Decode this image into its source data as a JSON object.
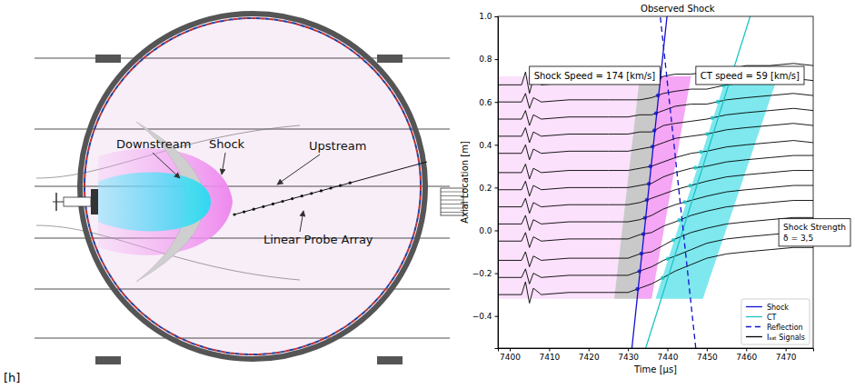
{
  "diagram": {
    "labels": {
      "downstream": "Downstream",
      "shock": "Shock",
      "upstream": "Upstream",
      "probe_array": "Linear Probe Array"
    },
    "caption": "[h]"
  },
  "chart_data": {
    "type": "line",
    "title": "Observed Shock",
    "x_label": "Time [μs]",
    "y_label": "Axial Location [m]",
    "xlim": [
      7397,
      7477
    ],
    "ylim": [
      -0.55,
      1.0
    ],
    "xticks": [
      7400,
      7410,
      7420,
      7430,
      7440,
      7450,
      7460,
      7470
    ],
    "yticks": [
      {
        "value": -0.4,
        "label": "−0.4"
      },
      {
        "value": -0.2,
        "label": "−0.2"
      },
      {
        "value": 0,
        "label": "0.0"
      },
      0.2,
      0.4,
      0.6,
      0.8,
      {
        "value": 1,
        "label": "1.0"
      }
    ],
    "grid": false,
    "legend": "lower right",
    "annotations": [
      {
        "lines": [
          "Shock Speed = 174 [km/s]"
        ]
      },
      {
        "lines": [
          "CT speed = 59 [km/s]"
        ]
      },
      {
        "lines": [
          "Shock Strength",
          "δ = 3,5"
        ]
      }
    ],
    "regions": [
      {
        "color": "#fbe1fb",
        "x": [
          7397,
          7426.5,
          7433,
          7397
        ],
        "y": [
          -0.32,
          -0.32,
          0.72,
          0.72
        ]
      },
      {
        "color": "#c9c9c9",
        "x": [
          7426.5,
          7432.3,
          7438.3,
          7433
        ],
        "y": [
          -0.32,
          -0.32,
          0.72,
          0.72
        ]
      },
      {
        "color": "#f5a6f5",
        "x": [
          7432.3,
          7436,
          7446,
          7438.3
        ],
        "y": [
          -0.32,
          -0.32,
          0.72,
          0.72
        ]
      },
      {
        "color": "#7ee8ee",
        "x": [
          7437,
          7449,
          7468,
          7455
        ],
        "y": [
          -0.32,
          -0.32,
          0.72,
          0.72
        ]
      }
    ],
    "series": [
      {
        "name": "Shock",
        "color": "#1010d0",
        "line_style": "solid",
        "x": [
          7431,
          7439.9
        ],
        "values": [
          -0.55,
          1.0
        ]
      },
      {
        "name": "CT",
        "color": "#1cc4c4",
        "line_style": "solid",
        "x": [
          7434.5,
          7461
        ],
        "values": [
          -0.55,
          1.0
        ]
      },
      {
        "name": "Reflection",
        "color": "#1010d0",
        "line_style": "dashed",
        "x": [
          7447.2,
          7438.2
        ],
        "values": [
          -0.55,
          1.0
        ]
      },
      {
        "name": "Iₛₐₜ Signals",
        "color": "#000000",
        "line_style": "solid",
        "x": [
          7397,
          7403,
          7404,
          7405,
          7406,
          7408,
          7415,
          7425,
          7430,
          7433,
          7436,
          7439,
          7442,
          7446,
          7450,
          7455,
          7460,
          7466,
          7472,
          7477
        ],
        "traces": [
          {
            "location": 0.68,
            "shock_arrival": 7438.1,
            "ct_arrival": 7455.5,
            "values": [
              0.68,
              0.68,
              0.74,
              0.64,
              0.71,
              0.68,
              0.69,
              0.69,
              0.69,
              0.69,
              0.7,
              0.72,
              0.73,
              0.73,
              0.74,
              0.75,
              0.77,
              0.77,
              0.78,
              0.77
            ]
          },
          {
            "location": 0.6,
            "shock_arrival": 7437.6,
            "ct_arrival": 7454.2,
            "values": [
              0.6,
              0.6,
              0.64,
              0.57,
              0.62,
              0.6,
              0.61,
              0.61,
              0.61,
              0.61,
              0.62,
              0.64,
              0.65,
              0.66,
              0.66,
              0.68,
              0.69,
              0.7,
              0.71,
              0.7
            ]
          },
          {
            "location": 0.52,
            "shock_arrival": 7437.1,
            "ct_arrival": 7452.8,
            "values": [
              0.52,
              0.52,
              0.56,
              0.49,
              0.54,
              0.52,
              0.53,
              0.53,
              0.53,
              0.54,
              0.54,
              0.56,
              0.58,
              0.59,
              0.59,
              0.61,
              0.62,
              0.63,
              0.64,
              0.63
            ]
          },
          {
            "location": 0.44,
            "shock_arrival": 7436.7,
            "ct_arrival": 7451.4,
            "values": [
              0.44,
              0.44,
              0.48,
              0.41,
              0.46,
              0.44,
              0.45,
              0.45,
              0.45,
              0.46,
              0.46,
              0.49,
              0.5,
              0.51,
              0.52,
              0.54,
              0.55,
              0.56,
              0.57,
              0.56
            ]
          },
          {
            "location": 0.36,
            "shock_arrival": 7436.2,
            "ct_arrival": 7450.1,
            "values": [
              0.36,
              0.36,
              0.4,
              0.33,
              0.38,
              0.36,
              0.37,
              0.37,
              0.37,
              0.38,
              0.39,
              0.41,
              0.43,
              0.44,
              0.45,
              0.47,
              0.48,
              0.49,
              0.5,
              0.49
            ]
          },
          {
            "location": 0.27,
            "shock_arrival": 7435.7,
            "ct_arrival": 7448.5,
            "values": [
              0.27,
              0.27,
              0.31,
              0.24,
              0.29,
              0.27,
              0.28,
              0.28,
              0.28,
              0.29,
              0.3,
              0.32,
              0.34,
              0.36,
              0.37,
              0.39,
              0.4,
              0.41,
              0.42,
              0.41
            ]
          },
          {
            "location": 0.19,
            "shock_arrival": 7435.3,
            "ct_arrival": 7447.1,
            "values": [
              0.19,
              0.19,
              0.23,
              0.16,
              0.21,
              0.19,
              0.2,
              0.2,
              0.2,
              0.21,
              0.22,
              0.25,
              0.27,
              0.29,
              0.3,
              0.32,
              0.33,
              0.34,
              0.35,
              0.35
            ]
          },
          {
            "location": 0.11,
            "shock_arrival": 7434.8,
            "ct_arrival": 7445.8,
            "values": [
              0.11,
              0.11,
              0.15,
              0.08,
              0.13,
              0.11,
              0.12,
              0.12,
              0.12,
              0.13,
              0.15,
              0.17,
              0.19,
              0.21,
              0.23,
              0.25,
              0.26,
              0.27,
              0.28,
              0.28
            ]
          },
          {
            "location": 0.03,
            "shock_arrival": 7434.3,
            "ct_arrival": 7444.4,
            "values": [
              0.03,
              0.03,
              0.07,
              0.0,
              0.05,
              0.03,
              0.04,
              0.04,
              0.04,
              0.05,
              0.07,
              0.1,
              0.12,
              0.14,
              0.16,
              0.18,
              0.19,
              0.2,
              0.21,
              0.21
            ]
          },
          {
            "location": -0.05,
            "shock_arrival": 7433.9,
            "ct_arrival": 7443.0,
            "values": [
              -0.05,
              -0.05,
              -0.01,
              -0.08,
              -0.03,
              -0.05,
              -0.04,
              -0.04,
              -0.04,
              -0.02,
              -0.01,
              0.02,
              0.04,
              0.07,
              0.09,
              0.11,
              0.12,
              0.13,
              0.14,
              0.14
            ]
          },
          {
            "location": -0.14,
            "shock_arrival": 7433.4,
            "ct_arrival": 7441.5,
            "values": [
              -0.14,
              -0.14,
              -0.1,
              -0.17,
              -0.12,
              -0.14,
              -0.13,
              -0.13,
              -0.13,
              -0.11,
              -0.1,
              -0.07,
              -0.04,
              -0.01,
              0.01,
              0.03,
              0.04,
              0.05,
              0.06,
              0.06
            ]
          },
          {
            "location": -0.22,
            "shock_arrival": 7432.9,
            "ct_arrival": 7440.1,
            "values": [
              -0.22,
              -0.22,
              -0.18,
              -0.25,
              -0.2,
              -0.22,
              -0.21,
              -0.21,
              -0.21,
              -0.19,
              -0.17,
              -0.14,
              -0.12,
              -0.09,
              -0.06,
              -0.04,
              -0.03,
              -0.02,
              -0.01,
              -0.01
            ]
          },
          {
            "location": -0.3,
            "shock_arrival": 7432.4,
            "ct_arrival": 7438.8,
            "values": [
              -0.3,
              -0.3,
              -0.24,
              -0.34,
              -0.27,
              -0.3,
              -0.29,
              -0.29,
              -0.29,
              -0.27,
              -0.25,
              -0.22,
              -0.19,
              -0.16,
              -0.13,
              -0.11,
              -0.1,
              -0.09,
              -0.08,
              -0.08
            ]
          }
        ]
      }
    ]
  }
}
